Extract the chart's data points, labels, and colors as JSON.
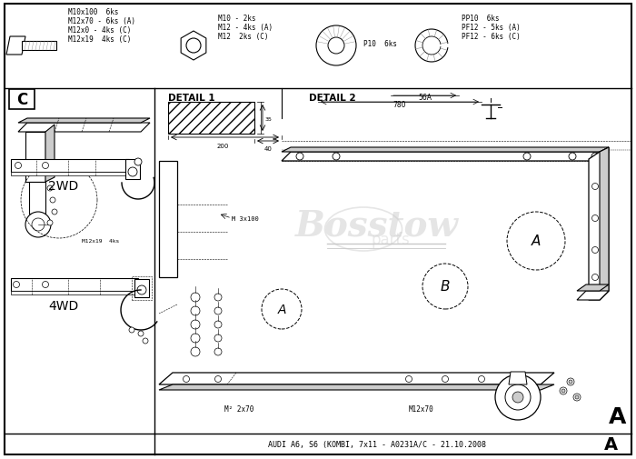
{
  "title": "AUDI A6, S6 (KOMBI, 7x11 - A0231A/C - 21.10.2008",
  "bg_color": "#ffffff",
  "border_color": "#000000",
  "text_color": "#000000",
  "corner_label_A": "A",
  "corner_label_C": "C",
  "detail1_label": "DETAIL 1",
  "detail2_label": "DETAIL 2",
  "label_2WD": "2WD",
  "label_4WD": "4WD",
  "bolt_labels_left": [
    "M10x100  6ks",
    "M12x70 - 6ks (A)",
    "M12x0 - 4ks (C)",
    "M12x19  4ks (C)"
  ],
  "bolt_labels_mid": [
    "M10 - 2ks",
    "M12 - 4ks (A)",
    "M12  2ks (C)"
  ],
  "bolt_label_washer": "P10  6ks",
  "bolt_labels_right": [
    "PP10  6ks",
    "PF12 - 5ks (A)",
    "PF12 - 6ks (C)"
  ],
  "dim_200": "200",
  "dim_40": "40",
  "dim_56A": "56A",
  "dim_780": "780",
  "screw_note1": "M 3x100",
  "screw_note2": "M12x70",
  "screw_note3": "M12x19  4ks",
  "screw_note4": "M² 2x70",
  "font_size_small": 5.5,
  "font_size_medium": 7,
  "font_size_large": 10,
  "logo_text": "Bosstow",
  "logo_sub": "parts",
  "gray_line": "#aaaaaa",
  "light_gray": "#cccccc",
  "mid_gray": "#888888"
}
